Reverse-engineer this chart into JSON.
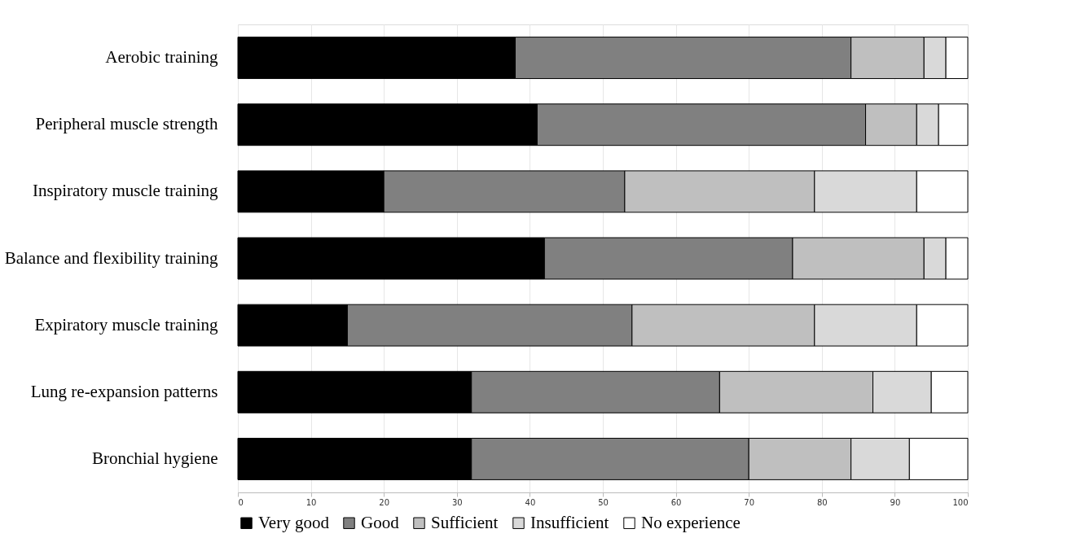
{
  "chart_data": {
    "type": "bar",
    "orientation": "horizontal",
    "stacked": true,
    "categories": [
      "Aerobic training",
      "Peripheral muscle strength",
      "Inspiratory muscle training",
      "Balance and flexibility training",
      "Expiratory muscle training",
      "Lung re-expansion patterns",
      "Bronchial hygiene"
    ],
    "series": [
      {
        "name": "Very good",
        "color": "#000000",
        "values": [
          38,
          41,
          20,
          42,
          15,
          32,
          32
        ]
      },
      {
        "name": "Good",
        "color": "#808080",
        "values": [
          46,
          45,
          33,
          34,
          39,
          34,
          38
        ]
      },
      {
        "name": "Sufficient",
        "color": "#bfbfbf",
        "values": [
          10,
          7,
          26,
          18,
          25,
          21,
          14
        ]
      },
      {
        "name": "Insufficient",
        "color": "#d9d9d9",
        "values": [
          3,
          3,
          14,
          3,
          14,
          8,
          8
        ]
      },
      {
        "name": "No experience",
        "color": "#ffffff",
        "values": [
          3,
          4,
          7,
          3,
          7,
          5,
          8
        ]
      }
    ],
    "xlim": [
      0,
      100
    ],
    "xticks": [
      0,
      10,
      20,
      30,
      40,
      50,
      60,
      70,
      80,
      90,
      100
    ],
    "grid": "x",
    "legend": "bottom"
  }
}
